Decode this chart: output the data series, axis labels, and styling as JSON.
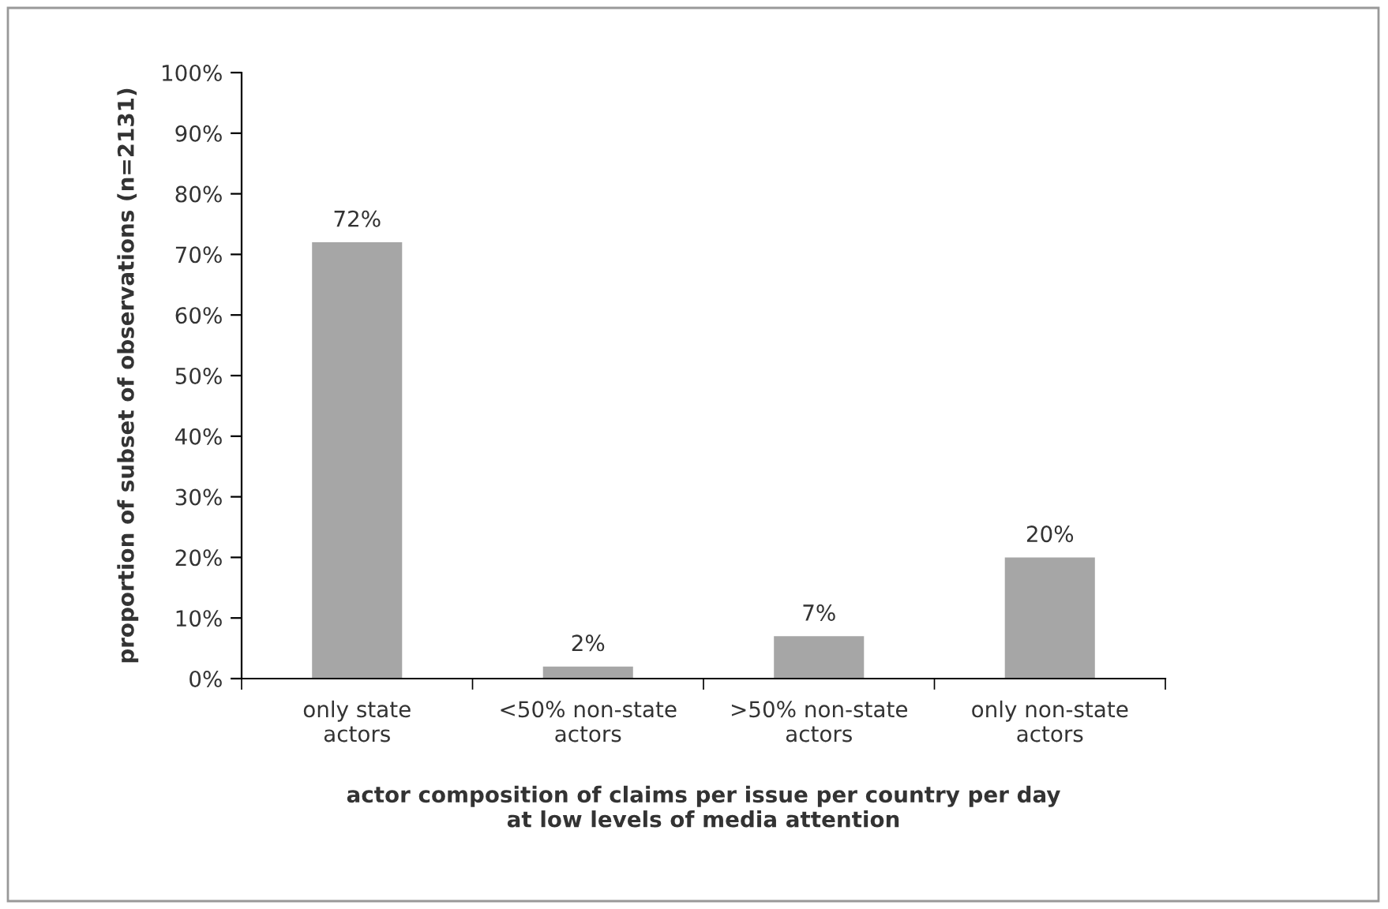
{
  "chart_data": {
    "type": "bar",
    "categories": [
      "only state\nactors",
      "<50% non-state\nactors",
      ">50% non-state\nactors",
      "only non-state\nactors"
    ],
    "values": [
      72,
      2,
      7,
      20
    ],
    "color": "#a6a6a6",
    "value_labels": [
      "72%",
      "2%",
      "7%",
      "20%"
    ],
    "xlabel": "actor composition of claims per issue per country per day\nat low levels of media attention",
    "ylabel": "proportion of subset of observations (n=2131)",
    "ylim": [
      0,
      100
    ],
    "yticks": [
      {
        "value": 0,
        "label": "0%"
      },
      {
        "value": 10,
        "label": "10%"
      },
      {
        "value": 20,
        "label": "20%"
      },
      {
        "value": 30,
        "label": "30%"
      },
      {
        "value": 40,
        "label": "40%"
      },
      {
        "value": 50,
        "label": "50%"
      },
      {
        "value": 60,
        "label": "60%"
      },
      {
        "value": 70,
        "label": "70%"
      },
      {
        "value": 80,
        "label": "80%"
      },
      {
        "value": 90,
        "label": "90%"
      },
      {
        "value": 100,
        "label": "100%"
      }
    ],
    "grid": false
  }
}
